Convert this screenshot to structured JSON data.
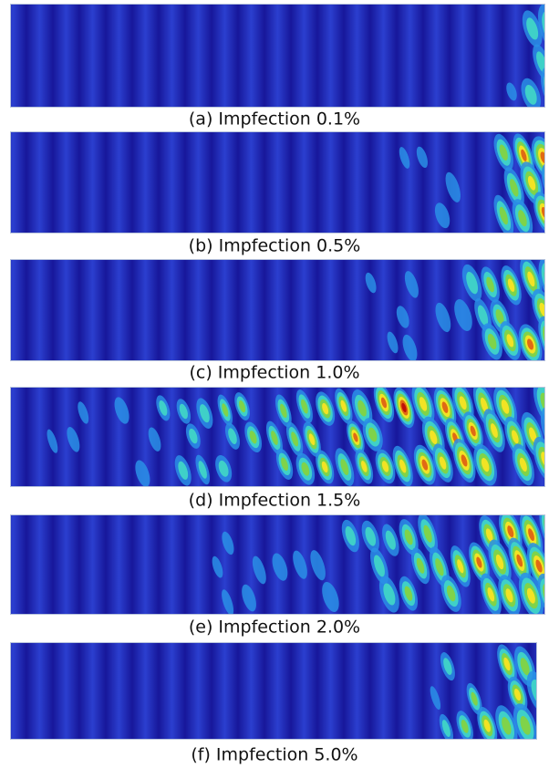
{
  "panels": [
    {
      "caption": "(a) Impfection 0.1%"
    },
    {
      "caption": "(b) Impfection 0.5%"
    },
    {
      "caption": "(c) Impfection 1.0%"
    },
    {
      "caption": "(d) Impfection 1.5%"
    },
    {
      "caption": "(e) Impfection 2.0%"
    },
    {
      "caption": "(f) Impfection 5.0%"
    }
  ]
}
